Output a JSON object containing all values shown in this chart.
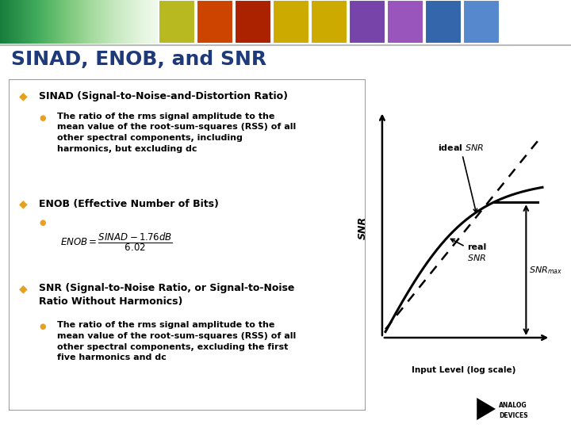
{
  "title": "SINAD, ENOB, and SNR",
  "title_color": "#1F3A7A",
  "bullet_color_diamond": "#E8A020",
  "bullet_color_circle": "#E8A020",
  "graph_xlabel": "Input Level (log scale)",
  "graph_ylabel": "SNR",
  "logo_text_1": "ANALOG",
  "logo_text_2": "DEVICES"
}
